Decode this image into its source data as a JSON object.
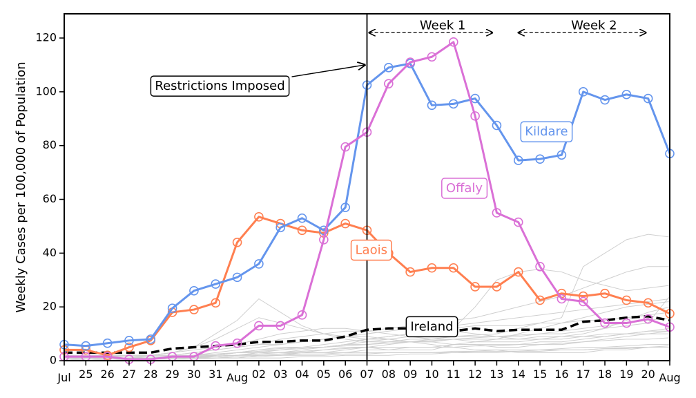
{
  "chart_data": {
    "type": "line",
    "ylabel": "Weekly Cases per 100,000 of Population",
    "xlabel": "",
    "ylim": [
      0,
      129
    ],
    "yticks": [
      0,
      20,
      40,
      60,
      80,
      100,
      120
    ],
    "x_range": [
      0,
      28
    ],
    "x_tick_labels": [
      "Jul",
      "25",
      "26",
      "27",
      "28",
      "29",
      "30",
      "31",
      "Aug",
      "02",
      "03",
      "04",
      "05",
      "06",
      "07",
      "08",
      "09",
      "10",
      "11",
      "12",
      "13",
      "14",
      "15",
      "16",
      "17",
      "18",
      "19",
      "20",
      "Aug"
    ],
    "grid": false,
    "series": [
      {
        "name": "Kildare",
        "color": "#6495ED",
        "markers": true,
        "values": [
          6,
          5.5,
          6.5,
          7.5,
          8,
          19.5,
          26,
          28.5,
          31,
          36,
          49.5,
          53,
          48.5,
          57,
          102.5,
          109,
          110.5,
          95,
          95.5,
          97.5,
          87.5,
          74.5,
          75,
          76.5,
          100,
          97,
          99,
          97.5,
          77
        ]
      },
      {
        "name": "Offaly",
        "color": "#DA70D6",
        "markers": true,
        "values": [
          1.5,
          1.5,
          1.5,
          0.5,
          0.5,
          1.5,
          1.5,
          5.5,
          6.5,
          13,
          13,
          17,
          45,
          79.5,
          85,
          103,
          111,
          113,
          118.5,
          91,
          55,
          51.5,
          35,
          23,
          22,
          14,
          14,
          15.5,
          12.5
        ]
      },
      {
        "name": "Laois",
        "color": "#FF7F50",
        "markers": true,
        "values": [
          4,
          4,
          2,
          5,
          7.5,
          18,
          19,
          21.5,
          44,
          53.5,
          51,
          48.5,
          47.5,
          51,
          48.5,
          40,
          33,
          34.5,
          34.5,
          27.5,
          27.5,
          33,
          22.5,
          25,
          24,
          25,
          22.5,
          21.5,
          17.5
        ]
      },
      {
        "name": "Ireland",
        "color": "#000000",
        "dashed": true,
        "markers": false,
        "values": [
          3,
          3,
          3,
          3,
          3,
          4.5,
          5,
          5.5,
          6,
          7,
          7,
          7.5,
          7.5,
          9,
          11.5,
          12,
          12,
          11,
          11,
          12,
          11,
          11.5,
          11.5,
          11.5,
          14.5,
          15,
          16,
          16.5,
          15
        ]
      }
    ],
    "background_series": [
      {
        "values": [
          0.5,
          0.5,
          0.5,
          0.5,
          0.5,
          1,
          1.5,
          1.5,
          2,
          2,
          2.5,
          3,
          3,
          4,
          5,
          6,
          7,
          8,
          9,
          9.5,
          10,
          12,
          14,
          16,
          35,
          40,
          45,
          47,
          46
        ]
      },
      {
        "values": [
          1,
          1,
          1.5,
          1.5,
          2,
          2,
          3,
          4,
          5,
          6,
          8,
          9,
          10,
          11,
          11,
          12,
          13,
          14,
          15,
          16,
          18,
          20,
          22,
          24,
          27,
          30,
          33,
          35,
          35
        ]
      },
      {
        "values": [
          0,
          0.5,
          0.5,
          1,
          1,
          1,
          1.5,
          2,
          3,
          4,
          4.5,
          5,
          5,
          6,
          7,
          8,
          9,
          10,
          12,
          20,
          30,
          33,
          34,
          33,
          30,
          28,
          26,
          27,
          28
        ]
      },
      {
        "values": [
          0.5,
          1,
          1,
          1,
          2,
          3,
          5,
          8,
          12,
          16,
          14,
          12,
          10,
          8,
          7,
          7,
          8,
          8,
          9,
          9,
          9,
          9,
          10,
          10,
          11,
          12,
          13,
          14,
          24
        ]
      },
      {
        "values": [
          0,
          0,
          0.5,
          0.5,
          0.5,
          1,
          1,
          1.5,
          2,
          3,
          3,
          3,
          4,
          5,
          5,
          4,
          4,
          4,
          6,
          7,
          8,
          10,
          12,
          14,
          16,
          18,
          20,
          21,
          22
        ]
      },
      {
        "values": [
          1,
          1.5,
          2,
          2,
          2,
          3,
          5,
          10,
          15,
          23,
          18,
          13,
          10,
          9,
          8,
          8,
          7,
          7,
          6,
          6,
          5,
          5,
          6,
          6,
          7,
          8,
          9,
          10,
          11
        ]
      },
      {
        "values": [
          0.5,
          0.5,
          0.5,
          1,
          1,
          2,
          3,
          4,
          5,
          6,
          6,
          7,
          8,
          9,
          10,
          11,
          12,
          13,
          13,
          14,
          15,
          16,
          17,
          18,
          19,
          20,
          21,
          22,
          23
        ]
      },
      {
        "values": [
          0,
          0.5,
          1,
          1,
          1,
          1,
          2,
          2,
          2,
          3,
          3,
          4,
          5,
          6,
          8,
          9,
          10,
          11,
          11,
          10,
          9,
          8,
          8,
          9,
          10,
          12,
          15,
          18,
          20
        ]
      },
      {
        "values": [
          0.5,
          0.5,
          0.5,
          0.5,
          0.5,
          0.5,
          1,
          1,
          1,
          2,
          2,
          3,
          3,
          3,
          4,
          4,
          5,
          5,
          6,
          6,
          6,
          6,
          7,
          7,
          8,
          9,
          10,
          11,
          12
        ]
      },
      {
        "values": [
          0,
          0,
          0,
          0.5,
          0.5,
          1,
          1,
          2,
          3,
          4,
          5,
          5,
          5,
          6,
          6,
          7,
          7,
          7,
          8,
          8,
          8,
          8,
          9,
          9,
          9,
          10,
          10,
          11,
          11
        ]
      },
      {
        "values": [
          2,
          2,
          2,
          2,
          2,
          2,
          2,
          2,
          3,
          3,
          4,
          5,
          6,
          7,
          8,
          9,
          10,
          11,
          12,
          13,
          13,
          13,
          14,
          14,
          15,
          15,
          16,
          17,
          18
        ]
      },
      {
        "values": [
          0,
          0.5,
          0.5,
          0.5,
          1,
          1,
          1,
          1.5,
          2,
          2,
          2,
          2.5,
          2.5,
          3,
          3,
          3,
          3,
          3,
          3.5,
          3.5,
          4,
          4,
          4,
          4.5,
          5,
          5,
          5.5,
          6,
          6
        ]
      },
      {
        "values": [
          1,
          1,
          1,
          1,
          1.5,
          1.5,
          2,
          3,
          4,
          5,
          6,
          7,
          8,
          9,
          9,
          8,
          7,
          6,
          5,
          4,
          4,
          3,
          3,
          3,
          3,
          4,
          4,
          5,
          5
        ]
      },
      {
        "values": [
          0.5,
          0.5,
          0.5,
          1,
          1,
          1.5,
          2,
          2.5,
          3,
          3.5,
          4,
          4.5,
          5,
          5.5,
          6,
          6.5,
          7,
          7.5,
          8,
          8.5,
          9,
          9.5,
          10,
          11,
          12,
          13,
          14,
          15,
          16
        ]
      },
      {
        "values": [
          0,
          0,
          0.5,
          0.5,
          0.5,
          0.5,
          0.5,
          1,
          1,
          1,
          1,
          1.5,
          1.5,
          2,
          2,
          2,
          2.5,
          2.5,
          3,
          3,
          3,
          3.5,
          3.5,
          4,
          4,
          4.5,
          5,
          5,
          5.5
        ]
      },
      {
        "values": [
          1,
          1.5,
          1.5,
          2,
          2,
          3,
          4,
          5,
          6,
          8,
          10,
          11,
          12,
          12,
          11,
          10,
          9,
          8,
          8,
          7,
          7,
          7,
          8,
          8,
          9,
          9,
          10,
          10,
          10
        ]
      },
      {
        "values": [
          0.5,
          0.5,
          1,
          1,
          1,
          1,
          1.5,
          1.5,
          2,
          2.5,
          3,
          3.5,
          4,
          4.5,
          5,
          5,
          5,
          5,
          5,
          5.5,
          5.5,
          6,
          6,
          6.5,
          7,
          7.5,
          8,
          8,
          8.5
        ]
      },
      {
        "values": [
          0,
          0.5,
          0.5,
          0.5,
          0.5,
          1,
          1,
          1,
          1.5,
          1.5,
          2,
          2,
          2,
          2.5,
          2.5,
          3,
          3,
          3,
          3,
          3.5,
          3.5,
          3.5,
          4,
          4,
          4,
          4.5,
          4.5,
          5,
          5
        ]
      }
    ],
    "annotations": [
      {
        "name": "restrictions",
        "text": "Restrictions Imposed",
        "x": 7.2,
        "y": 102,
        "arrow_to": {
          "x": 14.0,
          "y": 110
        }
      },
      {
        "name": "week1",
        "text": "Week 1",
        "x": 17.5,
        "y": 124.5,
        "span": [
          14.1,
          19.8
        ],
        "span_y": 122
      },
      {
        "name": "week2",
        "text": "Week 2",
        "x": 24.5,
        "y": 124.5,
        "span": [
          21.0,
          26.9
        ],
        "span_y": 122
      },
      {
        "name": "kildare-label",
        "text": "Kildare",
        "x": 22.3,
        "y": 85,
        "color": "#6495ED"
      },
      {
        "name": "offaly-label",
        "text": "Offaly",
        "x": 18.5,
        "y": 64,
        "color": "#DA70D6"
      },
      {
        "name": "laois-label",
        "text": "Laois",
        "x": 14.2,
        "y": 41,
        "color": "#FF7F50"
      },
      {
        "name": "ireland-label",
        "text": "Ireland",
        "x": 17.0,
        "y": 12.5,
        "color": "#000000"
      }
    ],
    "vline_x": 14
  }
}
